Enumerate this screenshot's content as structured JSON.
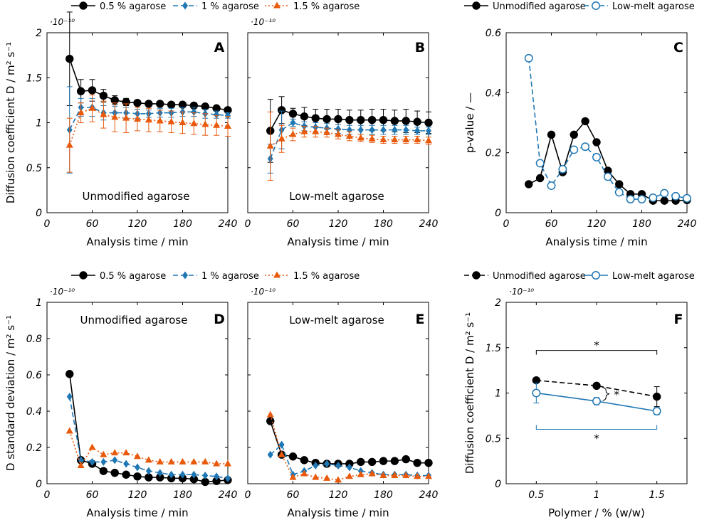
{
  "figure": {
    "legend_top_left": [
      "0.5 % agarose",
      "1 % agarose",
      "1.5 % agarose"
    ],
    "legend_top_right": [
      "Unmodified agarose",
      "Low-melt agarose"
    ],
    "legend_mid_left": [
      "0.5 % agarose",
      "1 % agarose",
      "1.5 % agarose"
    ],
    "legend_mid_right": [
      "Unmodified agarose",
      "Low-melt agarose"
    ]
  },
  "colors": {
    "black": "#000000",
    "blue": "#1f77b4",
    "orange": "#e8590c"
  },
  "chart_data": [
    {
      "type": "line",
      "panel": "A",
      "note": "Unmodified agarose",
      "ylabel": "Diffusion coefficient D / m² s⁻¹",
      "xlabel": "Analysis time / min",
      "scale_label": "·10⁻¹⁰",
      "xlim": [
        0,
        240
      ],
      "ylim": [
        0,
        2
      ],
      "xticks": [
        0,
        60,
        120,
        180,
        240
      ],
      "xtick_labels": [
        "0",
        "60",
        "120",
        "180",
        "240"
      ],
      "yticks": [
        0,
        0.5,
        1,
        1.5,
        2
      ],
      "ytick_labels": [
        "0",
        "0.5",
        "1",
        "1.5",
        "2"
      ],
      "x": [
        30,
        45,
        60,
        75,
        90,
        105,
        120,
        135,
        150,
        165,
        180,
        195,
        210,
        225,
        240
      ],
      "series": [
        {
          "name": "0.5 % agarose",
          "color": "black",
          "marker": "circle",
          "dash": "solid",
          "values": [
            1.71,
            1.35,
            1.36,
            1.3,
            1.25,
            1.23,
            1.22,
            1.21,
            1.21,
            1.2,
            1.2,
            1.19,
            1.18,
            1.16,
            1.14
          ],
          "err": [
            0.52,
            0.13,
            0.12,
            0.07,
            0.05,
            0.04,
            0.03,
            0.03,
            0.03,
            0.02,
            0.02,
            0.02,
            0.02,
            0.02,
            0.02
          ]
        },
        {
          "name": "1 % agarose",
          "color": "blue",
          "marker": "diamond",
          "dash": "dashed",
          "values": [
            0.92,
            1.17,
            1.17,
            1.11,
            1.11,
            1.11,
            1.1,
            1.1,
            1.11,
            1.11,
            1.12,
            1.12,
            1.1,
            1.09,
            1.08
          ],
          "err": [
            0.48,
            0.1,
            0.1,
            0.08,
            0.07,
            0.06,
            0.05,
            0.04,
            0.05,
            0.05,
            0.05,
            0.05,
            0.05,
            0.04,
            0.03
          ]
        },
        {
          "name": "1.5 % agarose",
          "color": "orange",
          "marker": "triangle",
          "dash": "dotted",
          "values": [
            0.75,
            1.11,
            1.16,
            1.09,
            1.06,
            1.05,
            1.04,
            1.03,
            1.02,
            1.01,
            1.0,
            0.99,
            0.98,
            0.97,
            0.96
          ],
          "err": [
            0.3,
            0.11,
            0.15,
            0.15,
            0.16,
            0.16,
            0.13,
            0.13,
            0.12,
            0.12,
            0.12,
            0.12,
            0.12,
            0.11,
            0.11
          ]
        }
      ]
    },
    {
      "type": "line",
      "panel": "B",
      "note": "Low-melt agarose",
      "ylabel": "",
      "xlabel": "Analysis time / min",
      "scale_label": "·10⁻¹⁰",
      "xlim": [
        0,
        240
      ],
      "ylim": [
        0,
        2
      ],
      "xticks": [
        0,
        60,
        120,
        180,
        240
      ],
      "xtick_labels": [
        "0",
        "60",
        "120",
        "180",
        "240"
      ],
      "yticks": [
        0,
        0.5,
        1,
        1.5,
        2
      ],
      "ytick_labels": [],
      "x": [
        30,
        45,
        60,
        75,
        90,
        105,
        120,
        135,
        150,
        165,
        180,
        195,
        210,
        225,
        240
      ],
      "series": [
        {
          "name": "0.5 % agarose",
          "color": "black",
          "marker": "circle",
          "dash": "solid",
          "values": [
            0.91,
            1.14,
            1.1,
            1.07,
            1.05,
            1.04,
            1.04,
            1.03,
            1.03,
            1.03,
            1.03,
            1.02,
            1.02,
            1.01,
            1.0
          ],
          "err": [
            0.35,
            0.15,
            0.06,
            0.1,
            0.1,
            0.11,
            0.11,
            0.11,
            0.11,
            0.12,
            0.12,
            0.12,
            0.13,
            0.12,
            0.12
          ]
        },
        {
          "name": "1 % agarose",
          "color": "blue",
          "marker": "diamond",
          "dash": "dashed",
          "values": [
            0.6,
            0.92,
            1.0,
            0.96,
            0.95,
            0.94,
            0.93,
            0.92,
            0.92,
            0.92,
            0.92,
            0.92,
            0.92,
            0.91,
            0.91
          ],
          "err": [
            0.16,
            0.21,
            0.04,
            0.05,
            0.05,
            0.05,
            0.05,
            0.05,
            0.05,
            0.05,
            0.05,
            0.05,
            0.05,
            0.04,
            0.04
          ]
        },
        {
          "name": "1.5 % agarose",
          "color": "orange",
          "marker": "triangle",
          "dash": "dotted",
          "values": [
            0.74,
            0.82,
            0.87,
            0.9,
            0.9,
            0.89,
            0.87,
            0.85,
            0.83,
            0.82,
            0.81,
            0.81,
            0.81,
            0.81,
            0.8
          ],
          "err": [
            0.38,
            0.15,
            0.07,
            0.06,
            0.06,
            0.05,
            0.05,
            0.05,
            0.04,
            0.04,
            0.04,
            0.04,
            0.04,
            0.04,
            0.04
          ]
        }
      ]
    },
    {
      "type": "line",
      "panel": "C",
      "note": "",
      "ylabel": "p-value / —",
      "xlabel": "Analysis time / min",
      "scale_label": "",
      "xlim": [
        0,
        240
      ],
      "ylim": [
        0,
        0.6
      ],
      "xticks": [
        0,
        60,
        120,
        180,
        240
      ],
      "xtick_labels": [
        "0",
        "60",
        "120",
        "180",
        "240"
      ],
      "yticks": [
        0,
        0.2,
        0.4,
        0.6
      ],
      "ytick_labels": [
        "0",
        "0.2",
        "0.4",
        "0.6"
      ],
      "x": [
        30,
        45,
        60,
        75,
        90,
        105,
        120,
        135,
        150,
        165,
        180,
        195,
        210,
        225,
        240
      ],
      "series": [
        {
          "name": "Unmodified agarose",
          "color": "black",
          "marker": "circle",
          "dash": "solid",
          "values": [
            0.095,
            0.115,
            0.26,
            0.135,
            0.26,
            0.305,
            0.235,
            0.14,
            0.095,
            0.062,
            0.062,
            0.04,
            0.04,
            0.04,
            0.042
          ]
        },
        {
          "name": "Low-melt agarose",
          "color": "blue",
          "marker": "circle-open",
          "dash": "dashed",
          "values": [
            0.515,
            0.165,
            0.09,
            0.145,
            0.21,
            0.22,
            0.185,
            0.12,
            0.068,
            0.045,
            0.045,
            0.05,
            0.065,
            0.055,
            0.048
          ]
        }
      ]
    },
    {
      "type": "line",
      "panel": "D",
      "note": "Unmodified agarose",
      "ylabel": "D standard deviation / m² s⁻¹",
      "xlabel": "Analysis time / min",
      "scale_label": "·10⁻¹⁰",
      "xlim": [
        0,
        240
      ],
      "ylim": [
        0,
        1
      ],
      "xticks": [
        0,
        60,
        120,
        180,
        240
      ],
      "xtick_labels": [
        "0",
        "60",
        "120",
        "180",
        "240"
      ],
      "yticks": [
        0,
        0.2,
        0.4,
        0.6,
        0.8,
        1
      ],
      "ytick_labels": [
        "0",
        "0.2",
        "0.4",
        "0.6",
        "0.8",
        "1"
      ],
      "x": [
        30,
        45,
        60,
        75,
        90,
        105,
        120,
        135,
        150,
        165,
        180,
        195,
        210,
        225,
        240
      ],
      "series": [
        {
          "name": "0.5 % agarose",
          "color": "black",
          "marker": "circle",
          "dash": "solid",
          "values": [
            0.605,
            0.13,
            0.11,
            0.07,
            0.06,
            0.05,
            0.04,
            0.035,
            0.035,
            0.03,
            0.03,
            0.025,
            0.01,
            0.015,
            0.02
          ]
        },
        {
          "name": "1 % agarose",
          "color": "blue",
          "marker": "diamond",
          "dash": "dashed",
          "values": [
            0.48,
            0.13,
            0.12,
            0.12,
            0.13,
            0.11,
            0.09,
            0.07,
            0.06,
            0.05,
            0.05,
            0.05,
            0.045,
            0.04,
            0.03
          ]
        },
        {
          "name": "1.5 % agarose",
          "color": "orange",
          "marker": "triangle",
          "dash": "dotted",
          "values": [
            0.29,
            0.1,
            0.2,
            0.16,
            0.17,
            0.17,
            0.15,
            0.13,
            0.12,
            0.12,
            0.12,
            0.12,
            0.12,
            0.11,
            0.11
          ]
        }
      ]
    },
    {
      "type": "line",
      "panel": "E",
      "note": "Low-melt agarose",
      "ylabel": "",
      "xlabel": "Analysis time / min",
      "scale_label": "·10⁻¹⁰",
      "xlim": [
        0,
        240
      ],
      "ylim": [
        0,
        1
      ],
      "xticks": [
        0,
        60,
        120,
        180,
        240
      ],
      "xtick_labels": [
        "0",
        "60",
        "120",
        "180",
        "240"
      ],
      "yticks": [
        0,
        0.2,
        0.4,
        0.6,
        0.8,
        1
      ],
      "ytick_labels": [],
      "x": [
        30,
        45,
        60,
        75,
        90,
        105,
        120,
        135,
        150,
        165,
        180,
        195,
        210,
        225,
        240
      ],
      "series": [
        {
          "name": "0.5 % agarose",
          "color": "black",
          "marker": "circle",
          "dash": "solid",
          "values": [
            0.345,
            0.16,
            0.15,
            0.13,
            0.115,
            0.11,
            0.11,
            0.11,
            0.12,
            0.12,
            0.125,
            0.125,
            0.135,
            0.115,
            0.115
          ]
        },
        {
          "name": "1 % agarose",
          "color": "blue",
          "marker": "diamond",
          "dash": "dashed",
          "values": [
            0.16,
            0.215,
            0.05,
            0.07,
            0.1,
            0.11,
            0.1,
            0.09,
            0.07,
            0.06,
            0.05,
            0.05,
            0.05,
            0.045,
            0.045
          ]
        },
        {
          "name": "1.5 % agarose",
          "color": "orange",
          "marker": "triangle",
          "dash": "dotted",
          "values": [
            0.38,
            0.16,
            0.035,
            0.055,
            0.035,
            0.03,
            0.02,
            0.04,
            0.05,
            0.055,
            0.045,
            0.045,
            0.045,
            0.04,
            0.04
          ]
        }
      ]
    },
    {
      "type": "line",
      "panel": "F",
      "note": "",
      "ylabel": "Diffusion coefficient D / m² s⁻¹",
      "xlabel": "Polymer / % (w/w)",
      "scale_label": "·10⁻¹⁰",
      "xlim": [
        0.25,
        1.75
      ],
      "ylim": [
        0,
        2
      ],
      "xticks": [
        0.5,
        1,
        1.5
      ],
      "xtick_labels": [
        "0.5",
        "1",
        "1.5"
      ],
      "yticks": [
        0,
        0.5,
        1,
        1.5,
        2
      ],
      "ytick_labels": [
        "0",
        "0.5",
        "1",
        "1.5",
        "2"
      ],
      "x": [
        0.5,
        1,
        1.5
      ],
      "series": [
        {
          "name": "Unmodified agarose",
          "color": "black",
          "marker": "circle",
          "dash": "dashed",
          "values": [
            1.14,
            1.08,
            0.96
          ],
          "err": [
            0.0,
            0.0,
            0.11
          ]
        },
        {
          "name": "Low-melt agarose",
          "color": "blue",
          "marker": "circle-open",
          "dash": "solid",
          "values": [
            1.0,
            0.91,
            0.8
          ],
          "err": [
            0.11,
            0.04,
            0.04
          ]
        }
      ],
      "significance": [
        "*",
        "*",
        "*"
      ]
    }
  ]
}
